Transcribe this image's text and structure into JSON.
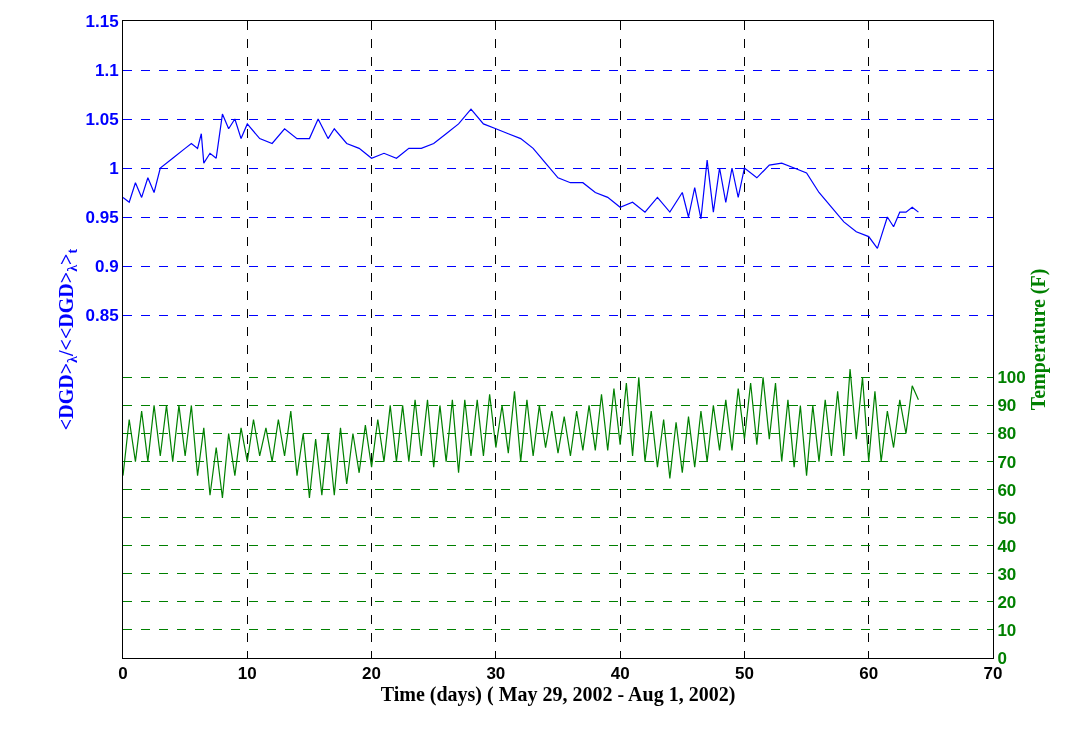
{
  "chart_data": {
    "type": "line",
    "xlabel": "Time (days) ( May 29, 2002 - Aug 1, 2002)",
    "ylabel": "<DGD>$_{λ}$/<<DGD>$_{λ}$>$_{t}$",
    "y2label": "Temperature (F)",
    "xlim": [
      0,
      70
    ],
    "xticks": [
      0,
      10,
      20,
      30,
      40,
      50,
      60,
      70
    ],
    "ylim": [
      0.5,
      1.15
    ],
    "yticks": [
      0.85,
      0.9,
      0.95,
      1,
      1.05,
      1.1,
      1.15
    ],
    "y2lim": [
      0,
      227
    ],
    "y2ticks": [
      0,
      10,
      20,
      30,
      40,
      50,
      60,
      70,
      80,
      90,
      100
    ],
    "grid": true,
    "line_style": "solid",
    "marker": "none",
    "series": [
      {
        "color": "#0000ff",
        "x": [
          0,
          0.5,
          1,
          1.5,
          2,
          2.5,
          3,
          4,
          5,
          5.5,
          6,
          6.3,
          6.5,
          7,
          7.5,
          8,
          8.5,
          9,
          9.5,
          10,
          11,
          12,
          13,
          14,
          15,
          15.7,
          16.5,
          17,
          18,
          19,
          20,
          21,
          22,
          23,
          24,
          25,
          26,
          27,
          28,
          29,
          30,
          31,
          32,
          33,
          34,
          35,
          36,
          37,
          38,
          39,
          40,
          41,
          42,
          43,
          44,
          45,
          45.5,
          46,
          46.5,
          47,
          47.5,
          48,
          48.5,
          49,
          49.5,
          50,
          51,
          52,
          53,
          54,
          55,
          56,
          57,
          58,
          59,
          60,
          60.7,
          61,
          61.5,
          62,
          62.5,
          63,
          63.5,
          64
        ],
        "values": [
          0.97,
          0.965,
          0.985,
          0.97,
          0.99,
          0.975,
          1.0,
          1.01,
          1.02,
          1.025,
          1.02,
          1.035,
          1.005,
          1.015,
          1.01,
          1.055,
          1.04,
          1.05,
          1.03,
          1.045,
          1.03,
          1.025,
          1.04,
          1.03,
          1.03,
          1.05,
          1.03,
          1.04,
          1.025,
          1.02,
          1.01,
          1.015,
          1.01,
          1.02,
          1.02,
          1.025,
          1.035,
          1.045,
          1.06,
          1.045,
          1.04,
          1.035,
          1.03,
          1.02,
          1.005,
          0.99,
          0.985,
          0.985,
          0.975,
          0.97,
          0.96,
          0.965,
          0.955,
          0.97,
          0.955,
          0.975,
          0.95,
          0.98,
          0.948,
          1.008,
          0.955,
          1.0,
          0.965,
          1.0,
          0.97,
          1.0,
          0.99,
          1.003,
          1.005,
          1.0,
          0.995,
          0.975,
          0.96,
          0.945,
          0.935,
          0.93,
          0.918,
          0.93,
          0.95,
          0.94,
          0.955,
          0.955,
          0.96,
          0.955
        ]
      },
      {
        "color": "#008000",
        "axis": "y2",
        "x": [
          0,
          0.5,
          1,
          1.5,
          2,
          2.5,
          3,
          3.5,
          4,
          4.5,
          5,
          5.5,
          6,
          6.5,
          7,
          7.5,
          8,
          8.5,
          9,
          9.5,
          10,
          10.5,
          11,
          11.5,
          12,
          12.5,
          13,
          13.5,
          14,
          14.5,
          15,
          15.5,
          16,
          16.5,
          17,
          17.5,
          18,
          18.5,
          19,
          19.5,
          20,
          20.5,
          21,
          21.5,
          22,
          22.5,
          23,
          23.5,
          24,
          24.5,
          25,
          25.5,
          26,
          26.5,
          27,
          27.5,
          28,
          28.5,
          29,
          29.5,
          30,
          30.5,
          31,
          31.5,
          32,
          32.5,
          33,
          33.5,
          34,
          34.5,
          35,
          35.5,
          36,
          36.5,
          37,
          37.5,
          38,
          38.5,
          39,
          39.5,
          40,
          40.5,
          41,
          41.5,
          42,
          42.5,
          43,
          43.5,
          44,
          44.5,
          45,
          45.5,
          46,
          46.5,
          47,
          47.5,
          48,
          48.5,
          49,
          49.5,
          50,
          50.5,
          51,
          51.5,
          52,
          52.5,
          53,
          53.5,
          54,
          54.5,
          55,
          55.5,
          56,
          56.5,
          57,
          57.5,
          58,
          58.5,
          59,
          59.5,
          60,
          60.5,
          61,
          61.5,
          62,
          62.5,
          63,
          63.5,
          64
        ],
        "values": [
          65,
          85,
          70,
          88,
          70,
          90,
          72,
          90,
          70,
          90,
          72,
          90,
          65,
          82,
          58,
          75,
          57,
          80,
          65,
          82,
          70,
          85,
          72,
          82,
          70,
          85,
          72,
          88,
          65,
          80,
          57,
          78,
          58,
          80,
          58,
          82,
          62,
          80,
          66,
          83,
          68,
          85,
          70,
          90,
          70,
          90,
          70,
          92,
          72,
          92,
          68,
          90,
          70,
          92,
          66,
          92,
          72,
          92,
          72,
          94,
          75,
          90,
          73,
          95,
          70,
          92,
          72,
          90,
          75,
          88,
          73,
          86,
          72,
          88,
          74,
          90,
          74,
          94,
          74,
          96,
          76,
          98,
          72,
          100,
          70,
          88,
          68,
          85,
          64,
          84,
          66,
          86,
          68,
          88,
          70,
          90,
          74,
          92,
          74,
          96,
          78,
          98,
          76,
          100,
          78,
          98,
          70,
          92,
          68,
          90,
          65,
          90,
          70,
          92,
          72,
          95,
          72,
          103,
          78,
          100,
          70,
          95,
          70,
          88,
          75,
          92,
          80,
          97,
          92
        ]
      }
    ]
  }
}
